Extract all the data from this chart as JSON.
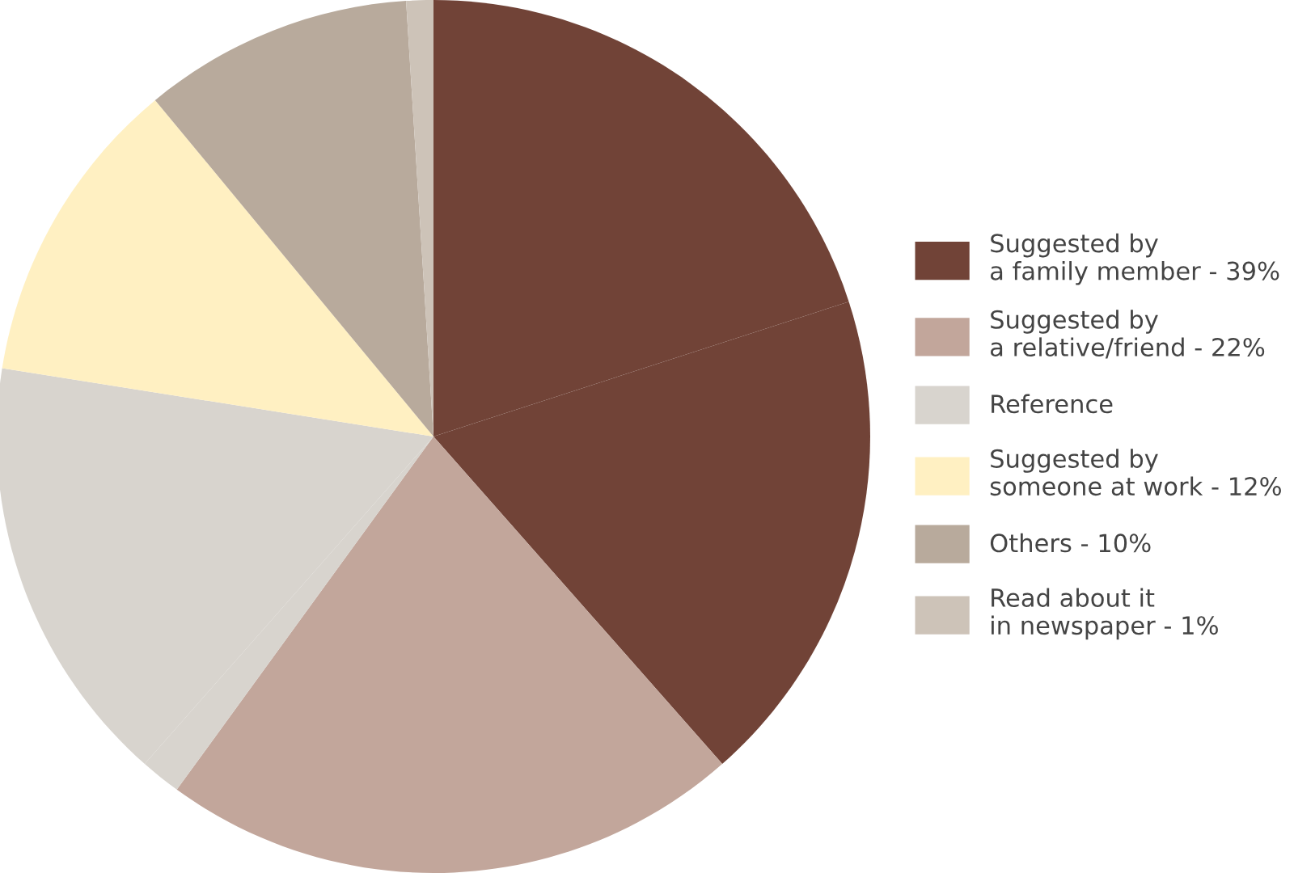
{
  "chart_data": {
    "type": "pie",
    "categories": [
      "Suggested by\na family member - 39%",
      null,
      "Suggested by\na relative/friend - 22%",
      "Reference",
      null,
      "Suggested by\nsomeone at work - 12%",
      "Others - 10%",
      "Read about it\nin newspaper - 1%"
    ],
    "values": [
      20,
      18.5,
      21.5,
      1.5,
      16,
      11.5,
      10,
      1
    ],
    "colors": [
      "#714337",
      "#714337",
      "#c2a69b",
      "#d8d4ce",
      "#d8d4ce",
      "#fff0c2",
      "#b8aa9c",
      "#cdc3b8"
    ],
    "legend": "right"
  }
}
